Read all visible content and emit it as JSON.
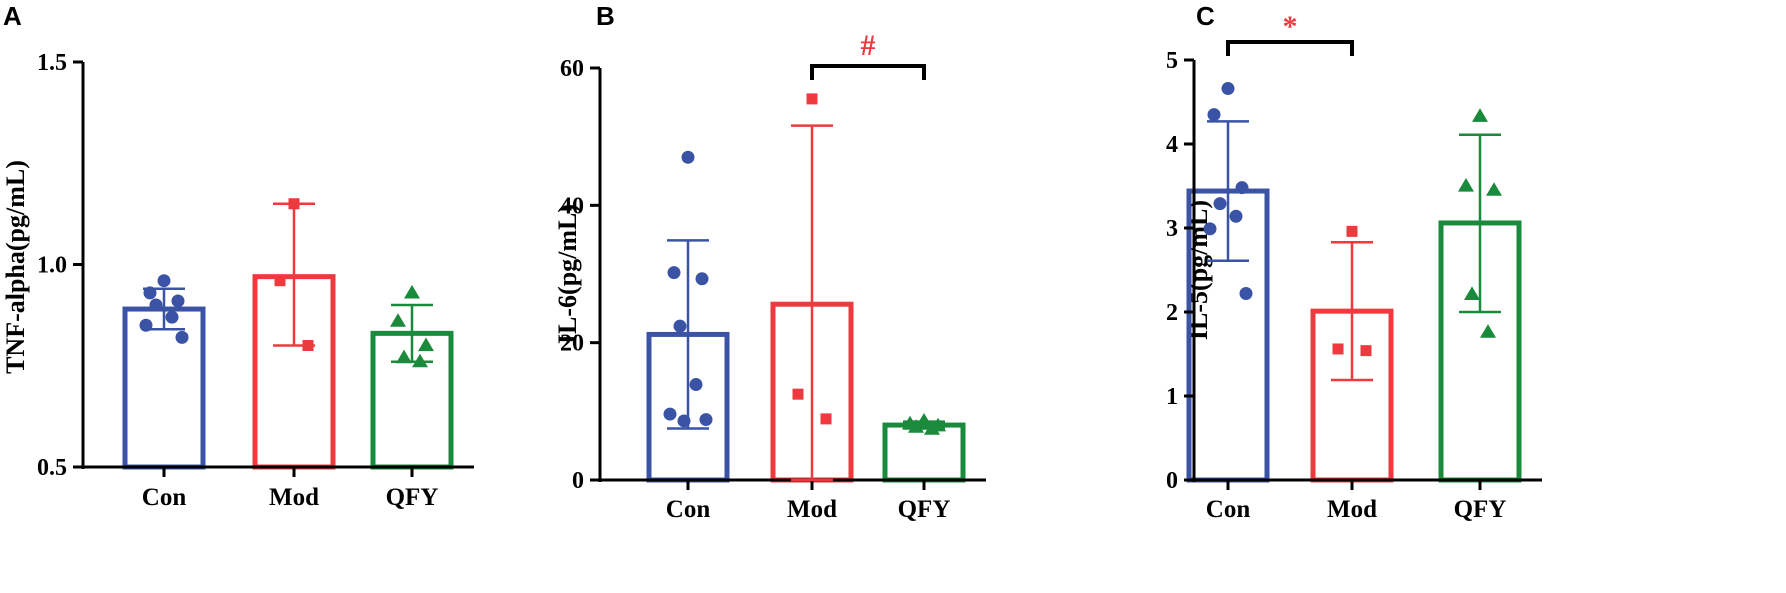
{
  "colors": {
    "Con": "#3a53a4",
    "Mod": "#ee3a3f",
    "QFY": "#1a8a3c",
    "axis": "#000000"
  },
  "chart_data": [
    {
      "type": "bar",
      "panel": "A",
      "ylabel": "TNF-alpha(pg/mL)",
      "ylim": [
        0.5,
        1.5
      ],
      "yticks": [
        0.5,
        1.0,
        1.5
      ],
      "ytick_labels": [
        "0.5",
        "1.0",
        "1.5"
      ],
      "categories": [
        "Con",
        "Mod",
        "QFY"
      ],
      "groups": [
        {
          "name": "Con",
          "mean": 0.89,
          "sd_low": 0.84,
          "sd_high": 0.94,
          "marker": "circle",
          "points": [
            0.96,
            0.93,
            0.91,
            0.9,
            0.87,
            0.85,
            0.82
          ]
        },
        {
          "name": "Mod",
          "mean": 0.97,
          "sd_low": 0.8,
          "sd_high": 1.15,
          "marker": "square",
          "points": [
            1.15,
            0.96,
            0.8
          ]
        },
        {
          "name": "QFY",
          "mean": 0.83,
          "sd_low": 0.76,
          "sd_high": 0.9,
          "marker": "triangle",
          "points": [
            0.93,
            0.86,
            0.8,
            0.77,
            0.76
          ]
        }
      ],
      "significance": []
    },
    {
      "type": "bar",
      "panel": "B",
      "ylabel": "IL-6(pg/mL)",
      "ylim": [
        0,
        60
      ],
      "yticks": [
        0,
        20,
        40,
        60
      ],
      "ytick_labels": [
        "0",
        "20",
        "40",
        "60"
      ],
      "categories": [
        "Con",
        "Mod",
        "QFY"
      ],
      "groups": [
        {
          "name": "Con",
          "mean": 21.2,
          "sd_low": 7.5,
          "sd_high": 34.9,
          "marker": "circle",
          "points": [
            47.0,
            30.2,
            29.3,
            22.4,
            13.9,
            9.6,
            8.8,
            8.6
          ]
        },
        {
          "name": "Mod",
          "mean": 25.6,
          "sd_low": 0.0,
          "sd_high": 51.6,
          "marker": "square",
          "points": [
            55.5,
            12.5,
            8.9
          ]
        },
        {
          "name": "QFY",
          "mean": 8.0,
          "sd_low": 7.5,
          "sd_high": 8.5,
          "marker": "triangle",
          "points": [
            8.6,
            8.2,
            7.9,
            7.7,
            7.4
          ]
        }
      ],
      "significance": [
        {
          "from": "Mod",
          "to": "QFY",
          "label": "#",
          "level": 60.0,
          "color": "#ee3a3f"
        }
      ]
    },
    {
      "type": "bar",
      "panel": "C",
      "ylabel": "IL-5(pg/mL)",
      "ylim": [
        0,
        5
      ],
      "yticks": [
        0,
        1,
        2,
        3,
        4,
        5
      ],
      "ytick_labels": [
        "0",
        "1",
        "2",
        "3",
        "4",
        "5"
      ],
      "categories": [
        "Con",
        "Mod",
        "QFY"
      ],
      "groups": [
        {
          "name": "Con",
          "mean": 3.44,
          "sd_low": 2.61,
          "sd_high": 4.27,
          "marker": "circle",
          "points": [
            4.66,
            4.35,
            3.48,
            3.29,
            3.14,
            2.99,
            2.22
          ]
        },
        {
          "name": "Mod",
          "mean": 2.01,
          "sd_low": 1.19,
          "sd_high": 2.83,
          "marker": "square",
          "points": [
            2.96,
            1.56,
            1.54
          ]
        },
        {
          "name": "QFY",
          "mean": 3.06,
          "sd_low": 2.0,
          "sd_high": 4.11,
          "marker": "triangle",
          "points": [
            4.33,
            3.5,
            3.45,
            2.21,
            1.76
          ]
        }
      ],
      "significance": [
        {
          "from": "Con",
          "to": "Mod",
          "label": "*",
          "level": 5.0,
          "color": "#ee3a3f"
        }
      ]
    }
  ]
}
